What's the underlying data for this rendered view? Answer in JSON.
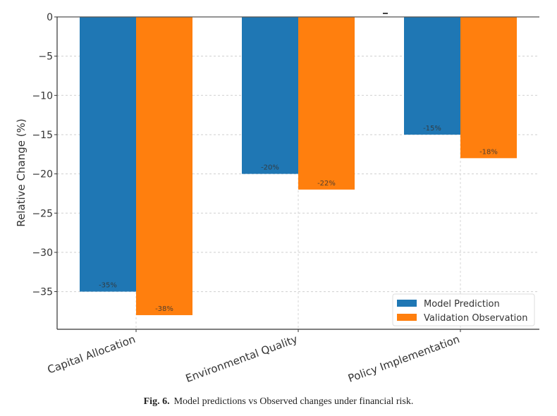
{
  "chart_data": {
    "type": "bar",
    "title": "",
    "xlabel": "",
    "ylabel": "Relative Change (%)",
    "categories": [
      "Capital Allocation",
      "Environmental Quality",
      "Policy Implementation"
    ],
    "series": [
      {
        "name": "Model Prediction",
        "color": "#1f77b4",
        "values": [
          -35,
          -20,
          -15
        ],
        "labels": [
          "-35%",
          "-20%",
          "-15%"
        ]
      },
      {
        "name": "Validation Observation",
        "color": "#ff7f0e",
        "values": [
          -38,
          -22,
          -18
        ],
        "labels": [
          "-38%",
          "-22%",
          "-18%"
        ]
      }
    ],
    "ylim": [
      -39.8,
      0
    ],
    "yticks": [
      0,
      -5,
      -10,
      -15,
      -20,
      -25,
      -30,
      -35
    ],
    "ytick_labels": [
      "0",
      "−5",
      "−10",
      "−15",
      "−20",
      "−25",
      "−30",
      "−35"
    ],
    "grid": true,
    "legend_position": "bottom-right",
    "x_tick_rotation_deg": -20
  },
  "caption": {
    "label": "Fig. 6.",
    "text": "Model predictions vs Observed changes under financial risk."
  }
}
